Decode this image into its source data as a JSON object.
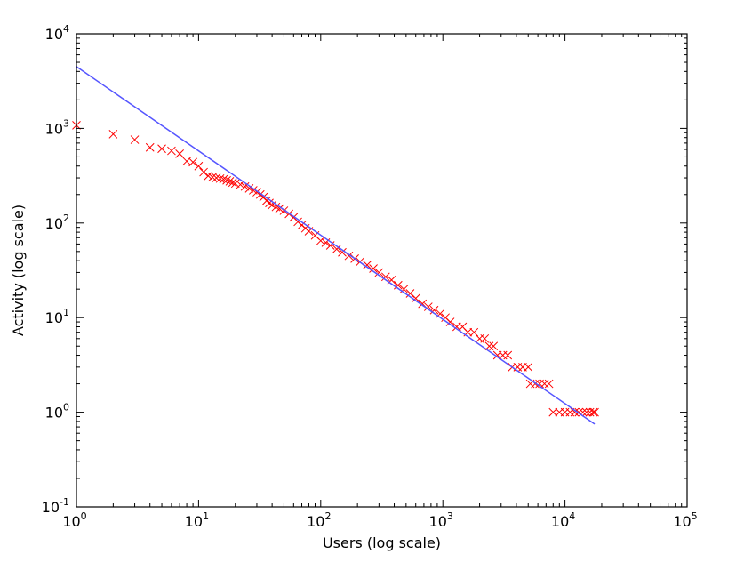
{
  "chart_data": {
    "type": "scatter",
    "xlabel": "Users (log scale)",
    "ylabel": "Activity (log scale)",
    "xscale": "log",
    "yscale": "log",
    "xlim": [
      1,
      100000
    ],
    "ylim": [
      0.1,
      10000
    ],
    "x_ticks": [
      {
        "base": "10",
        "exp": "0"
      },
      {
        "base": "10",
        "exp": "1"
      },
      {
        "base": "10",
        "exp": "2"
      },
      {
        "base": "10",
        "exp": "3"
      },
      {
        "base": "10",
        "exp": "4"
      },
      {
        "base": "10",
        "exp": "5"
      }
    ],
    "y_ticks": [
      {
        "base": "10",
        "exp": "-1"
      },
      {
        "base": "10",
        "exp": "0"
      },
      {
        "base": "10",
        "exp": "1"
      },
      {
        "base": "10",
        "exp": "2"
      },
      {
        "base": "10",
        "exp": "3"
      },
      {
        "base": "10",
        "exp": "4"
      }
    ],
    "grid": false,
    "legend": "none",
    "series": [
      {
        "kind": "scatter",
        "marker": "x",
        "color": "#ff0000",
        "points": [
          [
            1,
            1080
          ],
          [
            2,
            870
          ],
          [
            3,
            760
          ],
          [
            4,
            630
          ],
          [
            5,
            610
          ],
          [
            6,
            580
          ],
          [
            7,
            540
          ],
          [
            8,
            450
          ],
          [
            9,
            440
          ],
          [
            10,
            400
          ],
          [
            11,
            345
          ],
          [
            12,
            315
          ],
          [
            13,
            305
          ],
          [
            14,
            300
          ],
          [
            15,
            295
          ],
          [
            16,
            290
          ],
          [
            17,
            283
          ],
          [
            18,
            276
          ],
          [
            19,
            268
          ],
          [
            20,
            262
          ],
          [
            22,
            255
          ],
          [
            24,
            243
          ],
          [
            26,
            232
          ],
          [
            28,
            222
          ],
          [
            30,
            212
          ],
          [
            32,
            200
          ],
          [
            34,
            188
          ],
          [
            36,
            172
          ],
          [
            38,
            163
          ],
          [
            40,
            155
          ],
          [
            43,
            148
          ],
          [
            46,
            142
          ],
          [
            50,
            135
          ],
          [
            55,
            125
          ],
          [
            60,
            115
          ],
          [
            65,
            103
          ],
          [
            70,
            95
          ],
          [
            75,
            88
          ],
          [
            80,
            82
          ],
          [
            90,
            74
          ],
          [
            100,
            65
          ],
          [
            110,
            62
          ],
          [
            120,
            58
          ],
          [
            135,
            53
          ],
          [
            150,
            49
          ],
          [
            170,
            45
          ],
          [
            190,
            42
          ],
          [
            210,
            39
          ],
          [
            240,
            36
          ],
          [
            270,
            33
          ],
          [
            300,
            30
          ],
          [
            340,
            27
          ],
          [
            380,
            25
          ],
          [
            430,
            22
          ],
          [
            480,
            20
          ],
          [
            540,
            18
          ],
          [
            600,
            16
          ],
          [
            680,
            14
          ],
          [
            760,
            13
          ],
          [
            850,
            12
          ],
          [
            950,
            11
          ],
          [
            1050,
            10
          ],
          [
            1150,
            9
          ],
          [
            1300,
            8
          ],
          [
            1450,
            8
          ],
          [
            1600,
            7
          ],
          [
            1800,
            7
          ],
          [
            2000,
            6
          ],
          [
            2200,
            6
          ],
          [
            2400,
            5
          ],
          [
            2600,
            5
          ],
          [
            2800,
            4
          ],
          [
            3100,
            4
          ],
          [
            3400,
            4
          ],
          [
            3700,
            3
          ],
          [
            4100,
            3
          ],
          [
            4500,
            3
          ],
          [
            5000,
            3
          ],
          [
            5200,
            2
          ],
          [
            5700,
            2
          ],
          [
            6200,
            2
          ],
          [
            6800,
            2
          ],
          [
            7400,
            2
          ],
          [
            8000,
            1
          ],
          [
            9000,
            1
          ],
          [
            10000,
            1
          ],
          [
            11000,
            1
          ],
          [
            12000,
            1
          ],
          [
            13000,
            1
          ],
          [
            14000,
            1
          ],
          [
            15000,
            1
          ],
          [
            16000,
            1
          ],
          [
            17000,
            1
          ],
          [
            17500,
            1
          ]
        ]
      },
      {
        "kind": "line",
        "color": "#5555ff",
        "points": [
          [
            1,
            4500
          ],
          [
            17500,
            0.75
          ]
        ]
      }
    ]
  }
}
